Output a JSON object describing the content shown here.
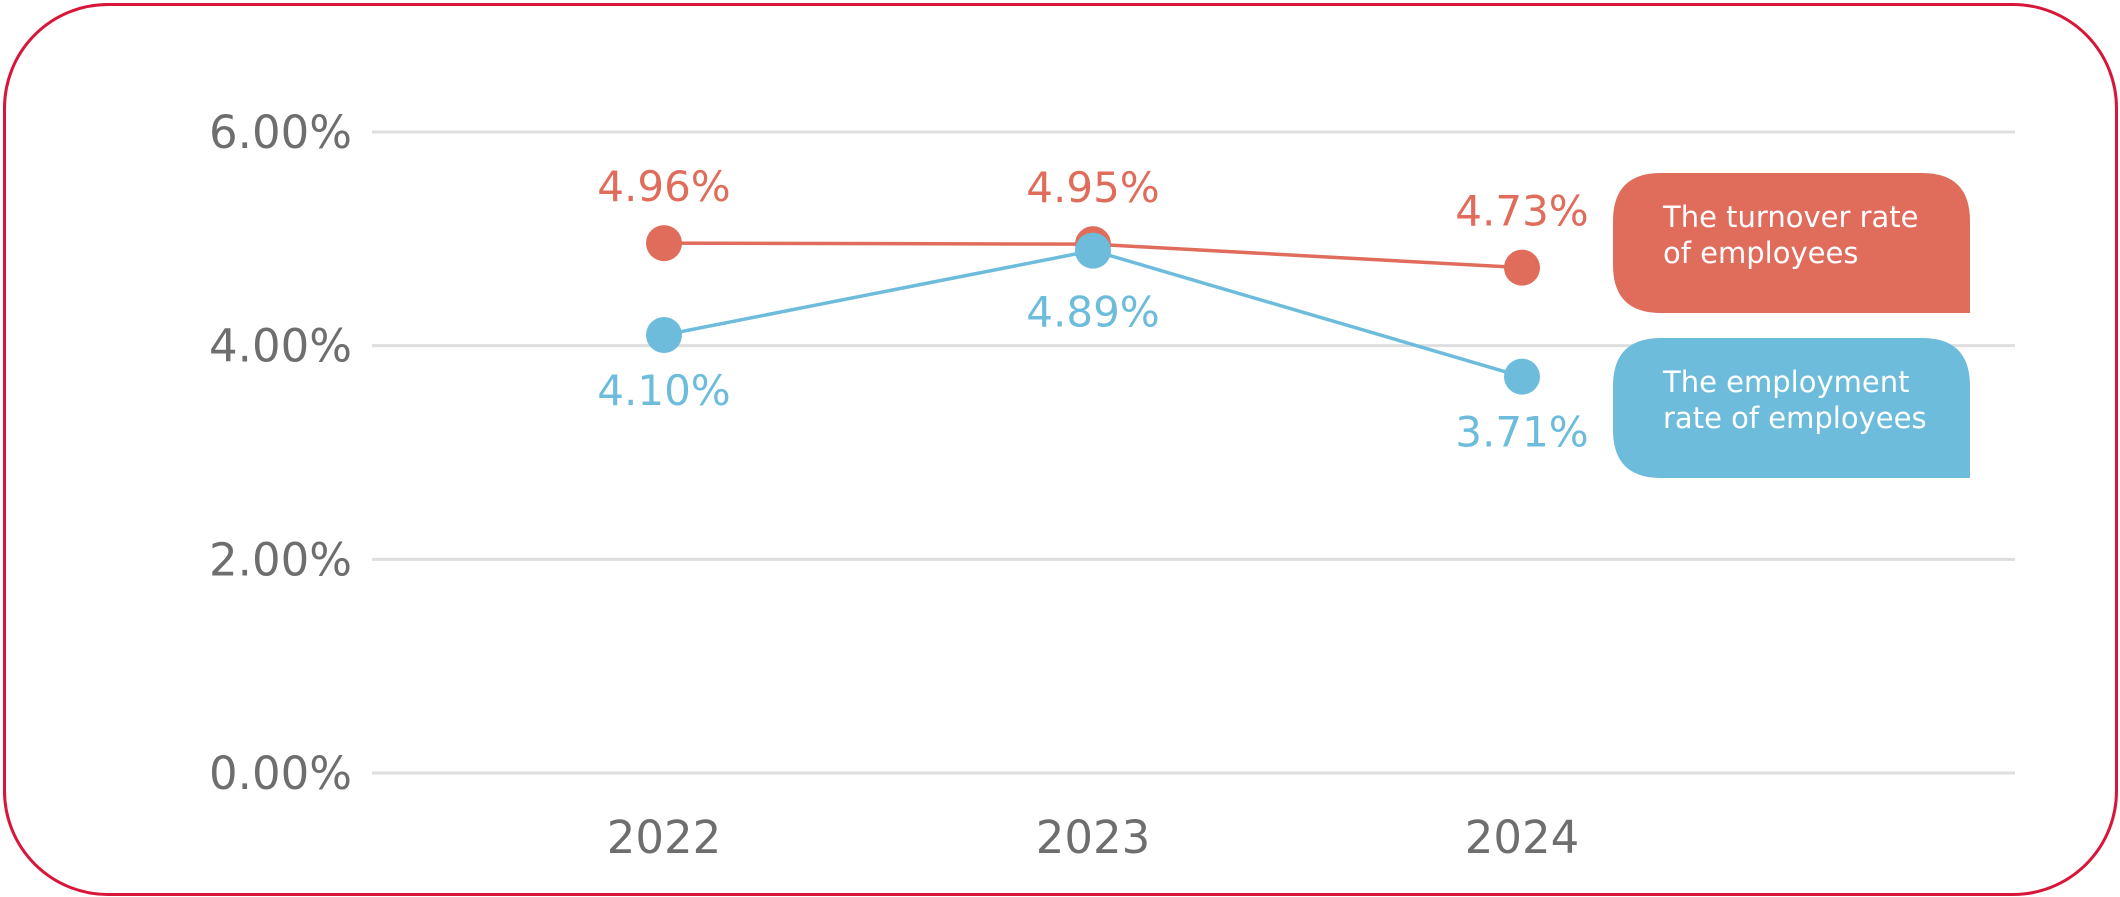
{
  "chart_data": {
    "type": "line",
    "title": "",
    "xlabel": "",
    "ylabel": "",
    "categories": [
      "2022",
      "2023",
      "2024"
    ],
    "ylim": [
      0,
      6
    ],
    "yticks": [
      0,
      2,
      4,
      6
    ],
    "ytick_labels": [
      "0.00%",
      "2.00%",
      "4.00%",
      "6.00%"
    ],
    "grid": true,
    "legend_position": "right",
    "series": [
      {
        "name": "The turnover rate of employees",
        "legend_lines": [
          "The turnover rate",
          "of employees"
        ],
        "values": [
          4.96,
          4.95,
          4.73
        ],
        "labels": [
          "4.96%",
          "4.95%",
          "4.73%"
        ],
        "color": "#e06c5c"
      },
      {
        "name": "The employment rate of employees",
        "legend_lines": [
          "The employment",
          "rate of employees"
        ],
        "values": [
          4.1,
          4.89,
          3.71
        ],
        "labels": [
          "4.10%",
          "4.89%",
          "3.71%"
        ],
        "color": "#6dbcdb"
      }
    ]
  }
}
